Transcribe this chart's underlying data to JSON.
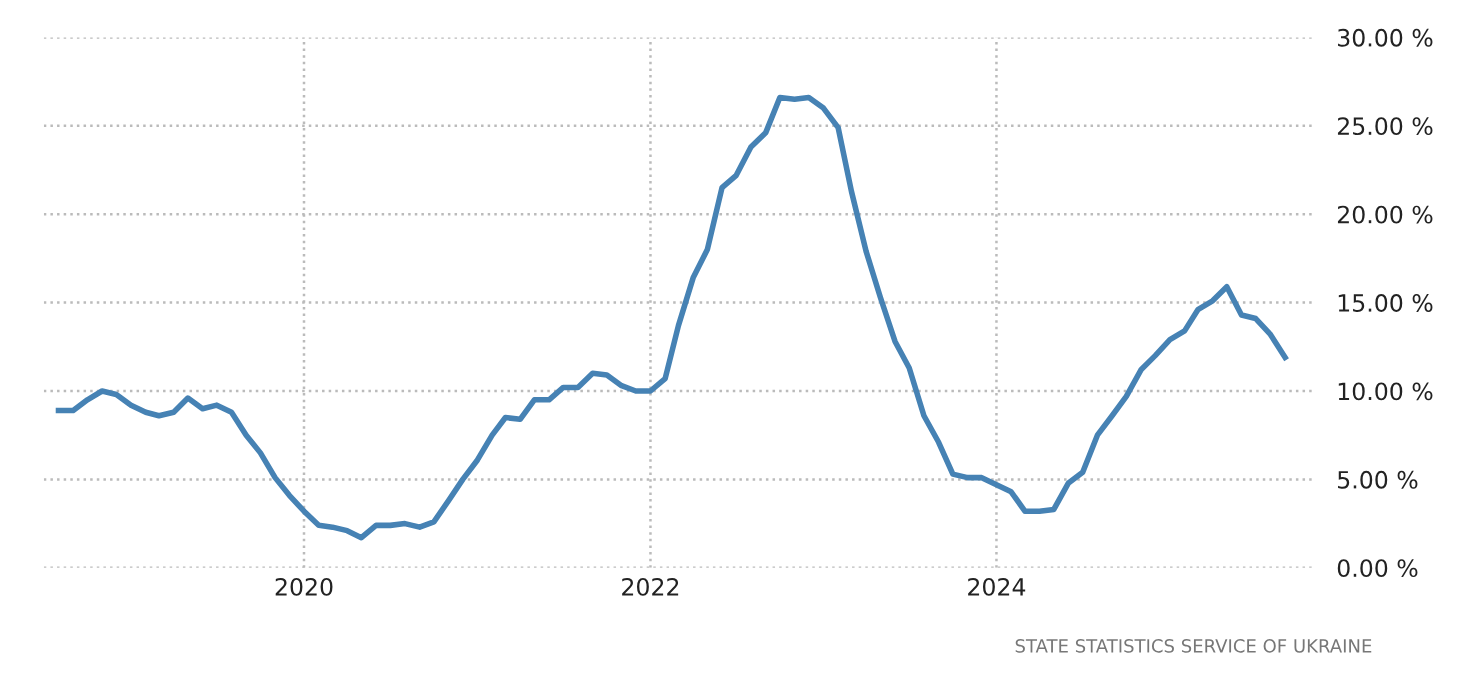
{
  "chart_data": {
    "type": "line",
    "x": [
      "2018-08",
      "2018-09",
      "2018-10",
      "2018-11",
      "2018-12",
      "2019-01",
      "2019-02",
      "2019-03",
      "2019-04",
      "2019-05",
      "2019-06",
      "2019-07",
      "2019-08",
      "2019-09",
      "2019-10",
      "2019-11",
      "2019-12",
      "2020-01",
      "2020-02",
      "2020-03",
      "2020-04",
      "2020-05",
      "2020-06",
      "2020-07",
      "2020-08",
      "2020-09",
      "2020-10",
      "2020-11",
      "2020-12",
      "2021-01",
      "2021-02",
      "2021-03",
      "2021-04",
      "2021-05",
      "2021-06",
      "2021-07",
      "2021-08",
      "2021-09",
      "2021-10",
      "2021-11",
      "2021-12",
      "2022-01",
      "2022-02",
      "2022-03",
      "2022-04",
      "2022-05",
      "2022-06",
      "2022-07",
      "2022-08",
      "2022-09",
      "2022-10",
      "2022-11",
      "2022-12",
      "2023-01",
      "2023-02",
      "2023-03",
      "2023-04",
      "2023-05",
      "2023-06",
      "2023-07",
      "2023-08",
      "2023-09",
      "2023-10",
      "2023-11",
      "2023-12",
      "2024-01",
      "2024-02",
      "2024-03",
      "2024-04",
      "2024-05",
      "2024-06",
      "2024-07",
      "2024-08",
      "2024-09",
      "2024-10",
      "2024-11",
      "2024-12",
      "2025-01",
      "2025-02",
      "2025-03",
      "2025-04",
      "2025-05",
      "2025-06",
      "2025-07",
      "2025-08",
      "2025-09"
    ],
    "series": [
      {
        "color": "#4682b4",
        "values": [
          8.9,
          8.9,
          9.5,
          10.0,
          9.8,
          9.2,
          8.8,
          8.6,
          8.8,
          9.6,
          9.0,
          9.2,
          8.8,
          7.5,
          6.5,
          5.1,
          4.1,
          3.2,
          2.4,
          2.3,
          2.1,
          1.7,
          2.4,
          2.4,
          2.5,
          2.3,
          2.6,
          3.8,
          5.0,
          6.1,
          7.5,
          8.5,
          8.4,
          9.5,
          9.5,
          10.2,
          10.2,
          11.0,
          10.9,
          10.3,
          10.0,
          10.0,
          10.7,
          13.7,
          16.4,
          18.0,
          21.5,
          22.2,
          23.8,
          24.6,
          26.6,
          26.5,
          26.6,
          26.0,
          24.9,
          21.3,
          17.9,
          15.3,
          12.8,
          11.3,
          8.6,
          7.1,
          5.3,
          5.1,
          5.1,
          4.7,
          4.3,
          3.2,
          3.2,
          3.3,
          4.8,
          5.4,
          7.5,
          8.6,
          9.7,
          11.2,
          12.0,
          12.9,
          13.4,
          14.6,
          15.1,
          15.9,
          14.3,
          14.1,
          13.2,
          11.9
        ]
      }
    ],
    "xlim": [
      "2018-07",
      "2025-11"
    ],
    "xticks": [
      "2020",
      "2022",
      "2024"
    ],
    "ylim": [
      0,
      30
    ],
    "yticks": [
      {
        "value": 0,
        "label": "0.00 %"
      },
      {
        "value": 5,
        "label": "5.00 %"
      },
      {
        "value": 10,
        "label": "10.00 %"
      },
      {
        "value": 15,
        "label": "15.00 %"
      },
      {
        "value": 20,
        "label": "20.00 %"
      },
      {
        "value": 25,
        "label": "25.00 %"
      },
      {
        "value": 30,
        "label": "30.00 %"
      }
    ],
    "grid": true,
    "annotations": [
      "STATE STATISTICS SERVICE OF UKRAINE"
    ]
  }
}
